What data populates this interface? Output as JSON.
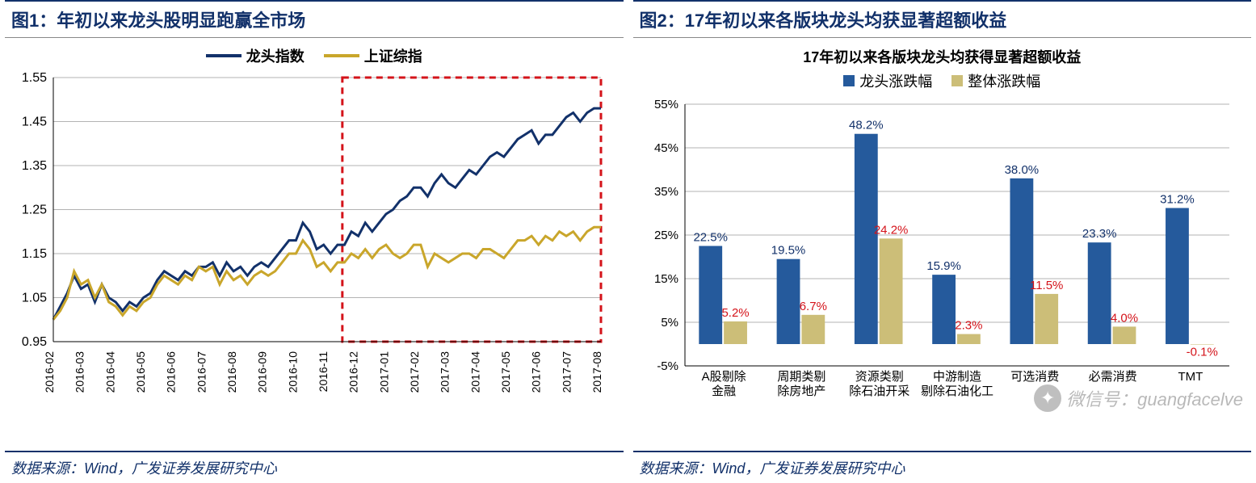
{
  "left": {
    "fig_label": "图1：",
    "title": "年初以来龙头股明显跑赢全市场",
    "footer": "数据来源：Wind，广发证券发展研究中心",
    "chart": {
      "type": "line",
      "legend": [
        {
          "label": "龙头指数",
          "color": "#12316a"
        },
        {
          "label": "上证综指",
          "color": "#c9a62b"
        }
      ],
      "x_labels": [
        "2016-02",
        "2016-03",
        "2016-04",
        "2016-05",
        "2016-06",
        "2016-07",
        "2016-08",
        "2016-09",
        "2016-10",
        "2016-11",
        "2016-12",
        "2017-01",
        "2017-02",
        "2017-03",
        "2017-04",
        "2017-05",
        "2017-06",
        "2017-07",
        "2017-08"
      ],
      "y_ticks": [
        0.95,
        1.05,
        1.15,
        1.25,
        1.35,
        1.45,
        1.55
      ],
      "ylim": [
        0.95,
        1.55
      ],
      "line_width": 3,
      "grid_color": "#b3b3b3",
      "background_color": "#ffffff",
      "highlight_box": {
        "color": "#d4131a",
        "dash": "8 6",
        "x_start": 9.5,
        "x_end": 19,
        "y_start": 0.95,
        "y_end": 1.55
      },
      "series": [
        {
          "name": "龙头指数",
          "color": "#12316a",
          "values": [
            1.0,
            1.03,
            1.06,
            1.1,
            1.07,
            1.08,
            1.04,
            1.08,
            1.05,
            1.04,
            1.02,
            1.04,
            1.03,
            1.05,
            1.06,
            1.09,
            1.11,
            1.1,
            1.09,
            1.11,
            1.1,
            1.12,
            1.12,
            1.13,
            1.1,
            1.13,
            1.11,
            1.12,
            1.1,
            1.12,
            1.13,
            1.12,
            1.14,
            1.16,
            1.18,
            1.18,
            1.22,
            1.2,
            1.16,
            1.17,
            1.15,
            1.17,
            1.17,
            1.2,
            1.19,
            1.22,
            1.2,
            1.22,
            1.24,
            1.25,
            1.27,
            1.28,
            1.3,
            1.3,
            1.28,
            1.31,
            1.33,
            1.31,
            1.3,
            1.32,
            1.34,
            1.33,
            1.35,
            1.37,
            1.38,
            1.37,
            1.39,
            1.41,
            1.42,
            1.43,
            1.4,
            1.42,
            1.42,
            1.44,
            1.46,
            1.47,
            1.45,
            1.47,
            1.48,
            1.48
          ]
        },
        {
          "name": "上证综指",
          "color": "#c9a62b",
          "values": [
            1.0,
            1.02,
            1.05,
            1.11,
            1.08,
            1.09,
            1.05,
            1.08,
            1.04,
            1.03,
            1.01,
            1.03,
            1.02,
            1.04,
            1.05,
            1.08,
            1.1,
            1.09,
            1.08,
            1.1,
            1.09,
            1.12,
            1.11,
            1.12,
            1.08,
            1.11,
            1.09,
            1.1,
            1.08,
            1.1,
            1.11,
            1.1,
            1.11,
            1.13,
            1.15,
            1.15,
            1.18,
            1.16,
            1.12,
            1.13,
            1.11,
            1.13,
            1.13,
            1.15,
            1.14,
            1.16,
            1.14,
            1.16,
            1.17,
            1.15,
            1.14,
            1.15,
            1.17,
            1.17,
            1.12,
            1.15,
            1.14,
            1.13,
            1.14,
            1.15,
            1.15,
            1.14,
            1.16,
            1.16,
            1.15,
            1.14,
            1.16,
            1.18,
            1.18,
            1.19,
            1.17,
            1.19,
            1.18,
            1.2,
            1.19,
            1.2,
            1.18,
            1.2,
            1.21,
            1.21
          ]
        }
      ]
    }
  },
  "right": {
    "fig_label": "图2：",
    "title": "17年初以来各版块龙头均获显著超额收益",
    "footer": "数据来源：Wind，广发证券发展研究中心",
    "chart": {
      "type": "bar",
      "chart_title": "17年初以来各版块龙头均获得显著超额收益",
      "legend": [
        {
          "label": "龙头涨跌幅",
          "color": "#255a9c"
        },
        {
          "label": "整体涨跌幅",
          "color": "#ccbe78"
        }
      ],
      "categories": [
        "A股剔除金融",
        "周期类剔除房地产",
        "资源类剔除石油开采",
        "中游制造剔除石油化工",
        "可选消费",
        "必需消费",
        "TMT"
      ],
      "series": [
        {
          "name": "龙头涨跌幅",
          "color": "#255a9c",
          "values": [
            22.5,
            19.5,
            48.2,
            15.9,
            38.0,
            23.3,
            31.2
          ],
          "label_color": "#12316a"
        },
        {
          "name": "整体涨跌幅",
          "color": "#ccbe78",
          "values": [
            5.2,
            6.7,
            24.2,
            2.3,
            11.5,
            4.0,
            -0.1
          ],
          "label_color": "#d4131a"
        }
      ],
      "y_ticks": [
        -5,
        5,
        15,
        25,
        35,
        45,
        55
      ],
      "ylim": [
        -5,
        55
      ],
      "bar_gap": 0.14,
      "group_width": 0.64,
      "grid_color": "#b3b3b3",
      "tick_fontsize": 15,
      "label_fontsize": 15
    }
  },
  "watermark": "微信号：guangfacelve"
}
